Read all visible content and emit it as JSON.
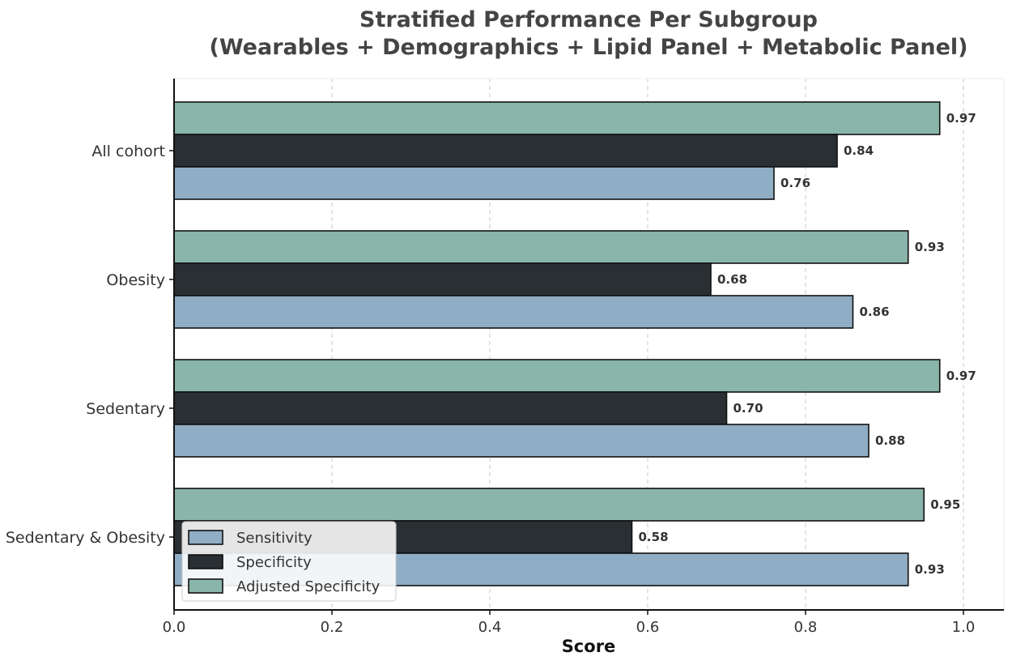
{
  "chart_data": {
    "type": "bar",
    "orientation": "horizontal",
    "title_lines": [
      "Stratified Performance Per Subgroup",
      "(Wearables + Demographics + Lipid Panel + Metabolic Panel)"
    ],
    "xlabel": "Score",
    "ylabel": "",
    "xlim": [
      0,
      1.05
    ],
    "xticks": [
      "0.0",
      "0.2",
      "0.4",
      "0.6",
      "0.8",
      "1.0"
    ],
    "grid": "x-dashed",
    "legend_position": "lower-left",
    "categories": [
      "All cohort",
      "Obesity",
      "Sedentary",
      "Sedentary & Obesity"
    ],
    "series": [
      {
        "name": "Sensitivity",
        "color": "#8fadc5",
        "values": [
          0.76,
          0.86,
          0.88,
          0.93
        ],
        "labels": [
          "0.76",
          "0.86",
          "0.88",
          "0.93"
        ]
      },
      {
        "name": "Specificity",
        "color": "#2a2f33",
        "values": [
          0.84,
          0.68,
          0.7,
          0.58
        ],
        "labels": [
          "0.84",
          "0.68",
          "0.70",
          "0.58"
        ]
      },
      {
        "name": "Adjusted Specificity",
        "color": "#8ab5aa",
        "values": [
          0.97,
          0.93,
          0.97,
          0.95
        ],
        "labels": [
          "0.97",
          "0.93",
          "0.97",
          "0.95"
        ]
      }
    ]
  }
}
